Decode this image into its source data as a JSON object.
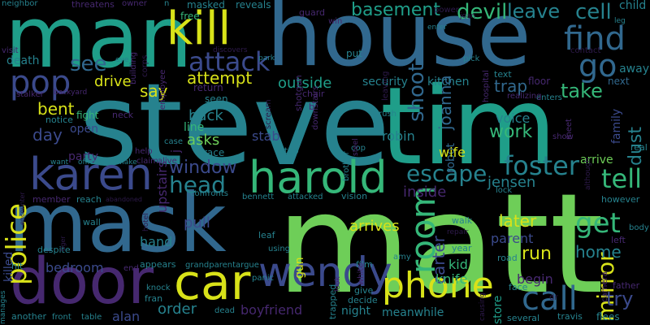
{
  "palette": {
    "purple": "#46286f",
    "indigo": "#3b4a8c",
    "blue": "#31688e",
    "teal": "#26828e",
    "sea": "#1f9e89",
    "green": "#35b779",
    "lime": "#6ece58",
    "yellow": "#d8e219",
    "deep": "#2e1a4b"
  },
  "words": [
    {
      "text": "steve",
      "color": "teal"
    },
    {
      "text": "tim",
      "color": "sea"
    },
    {
      "text": "matt",
      "color": "lime"
    },
    {
      "text": "house",
      "color": "blue"
    },
    {
      "text": "man",
      "color": "sea"
    },
    {
      "text": "mask",
      "color": "blue"
    },
    {
      "text": "door",
      "color": "purple"
    },
    {
      "text": "kill",
      "color": "yellow"
    },
    {
      "text": "harold",
      "color": "green"
    },
    {
      "text": "karen",
      "color": "indigo"
    },
    {
      "text": "car",
      "color": "yellow"
    },
    {
      "text": "wendy",
      "color": "indigo"
    },
    {
      "text": "phone",
      "color": "yellow"
    },
    {
      "text": "pop",
      "color": "indigo"
    },
    {
      "text": "police",
      "color": "yellow"
    },
    {
      "text": "find",
      "color": "blue"
    },
    {
      "text": "go",
      "color": "blue"
    },
    {
      "text": "call",
      "color": "blue"
    },
    {
      "text": "foster",
      "color": "teal"
    },
    {
      "text": "attack",
      "color": "indigo"
    },
    {
      "text": "room",
      "color": "green"
    },
    {
      "text": "escape",
      "color": "teal"
    },
    {
      "text": "head",
      "color": "teal"
    },
    {
      "text": "window",
      "color": "indigo"
    },
    {
      "text": "tell",
      "color": "green"
    },
    {
      "text": "get",
      "color": "green"
    },
    {
      "text": "devil",
      "color": "green"
    },
    {
      "text": "leave",
      "color": "teal"
    },
    {
      "text": "cell",
      "color": "teal"
    },
    {
      "text": "basement",
      "color": "sea"
    },
    {
      "text": "shoot",
      "color": "blue"
    },
    {
      "text": "see",
      "color": "blue"
    },
    {
      "text": "say",
      "color": "yellow"
    },
    {
      "text": "drive",
      "color": "yellow"
    },
    {
      "text": "attempt",
      "color": "yellow"
    },
    {
      "text": "outside",
      "color": "sea"
    },
    {
      "text": "security",
      "color": "teal"
    },
    {
      "text": "kitchen",
      "color": "teal"
    },
    {
      "text": "trap",
      "color": "blue"
    },
    {
      "text": "take",
      "color": "green"
    },
    {
      "text": "work",
      "color": "green"
    },
    {
      "text": "voice",
      "color": "teal"
    },
    {
      "text": "jensen",
      "color": "teal"
    },
    {
      "text": "inside",
      "color": "purple"
    },
    {
      "text": "mirror",
      "color": "yellow"
    },
    {
      "text": "dust",
      "color": "teal"
    },
    {
      "text": "arrive",
      "color": "lime"
    },
    {
      "text": "try",
      "color": "indigo"
    },
    {
      "text": "home",
      "color": "teal"
    },
    {
      "text": "later",
      "color": "yellow"
    },
    {
      "text": "parent",
      "color": "indigo"
    },
    {
      "text": "run",
      "color": "yellow"
    },
    {
      "text": "carter",
      "color": "indigo"
    },
    {
      "text": "joanna",
      "color": "blue"
    },
    {
      "text": "robin",
      "color": "teal"
    },
    {
      "text": "robot",
      "color": "blue"
    },
    {
      "text": "wife",
      "color": "yellow"
    },
    {
      "text": "arrives",
      "color": "yellow"
    },
    {
      "text": "bent",
      "color": "yellow"
    },
    {
      "text": "day",
      "color": "indigo"
    },
    {
      "text": "open",
      "color": "indigo"
    },
    {
      "text": "party",
      "color": "purple"
    },
    {
      "text": "upstairs",
      "color": "purple"
    },
    {
      "text": "back",
      "color": "teal"
    },
    {
      "text": "line",
      "color": "green"
    },
    {
      "text": "asks",
      "color": "lime"
    },
    {
      "text": "stab",
      "color": "indigo"
    },
    {
      "text": "hand",
      "color": "teal"
    },
    {
      "text": "pull",
      "color": "indigo"
    },
    {
      "text": "order",
      "color": "teal"
    },
    {
      "text": "boyfriend",
      "color": "purple"
    },
    {
      "text": "night",
      "color": "teal"
    },
    {
      "text": "meanwhile",
      "color": "teal"
    },
    {
      "text": "knife",
      "color": "green"
    },
    {
      "text": "kid",
      "color": "green"
    },
    {
      "text": "bedroom",
      "color": "indigo"
    },
    {
      "text": "killed",
      "color": "indigo"
    },
    {
      "text": "alan",
      "color": "indigo"
    },
    {
      "text": "begin",
      "color": "purple"
    },
    {
      "text": "store",
      "color": "sea"
    },
    {
      "text": "family",
      "color": "indigo"
    },
    {
      "text": "child",
      "color": "teal"
    },
    {
      "text": "away",
      "color": "teal"
    },
    {
      "text": "next",
      "color": "blue"
    },
    {
      "text": "fight",
      "color": "green"
    },
    {
      "text": "death",
      "color": "teal"
    },
    {
      "text": "see",
      "color": "blue"
    },
    {
      "text": "gun",
      "color": "yellow"
    },
    {
      "text": "return",
      "color": "purple"
    },
    {
      "text": "seen",
      "color": "teal"
    },
    {
      "text": "masked",
      "color": "teal"
    },
    {
      "text": "reveals",
      "color": "teal"
    },
    {
      "text": "free",
      "color": "green"
    },
    {
      "text": "guard",
      "color": "purple"
    },
    {
      "text": "shotgun",
      "color": "purple"
    },
    {
      "text": "downstairs",
      "color": "purple"
    },
    {
      "text": "scream",
      "color": "deep"
    },
    {
      "text": "put",
      "color": "teal"
    },
    {
      "text": "leaving",
      "color": "deep"
    },
    {
      "text": "text",
      "color": "teal"
    },
    {
      "text": "hospital",
      "color": "purple"
    },
    {
      "text": "power",
      "color": "deep"
    },
    {
      "text": "floor",
      "color": "purple"
    },
    {
      "text": "enters",
      "color": "teal"
    },
    {
      "text": "realizing",
      "color": "purple"
    },
    {
      "text": "contact",
      "color": "deep"
    },
    {
      "text": "meet",
      "color": "purple"
    },
    {
      "text": "show",
      "color": "purple"
    },
    {
      "text": "although",
      "color": "deep"
    },
    {
      "text": "real",
      "color": "teal"
    },
    {
      "text": "however",
      "color": "teal"
    },
    {
      "text": "body",
      "color": "teal"
    },
    {
      "text": "left",
      "color": "purple"
    },
    {
      "text": "camera",
      "color": "purple"
    },
    {
      "text": "father",
      "color": "purple"
    },
    {
      "text": "flees",
      "color": "teal"
    },
    {
      "text": "several",
      "color": "teal"
    },
    {
      "text": "travis",
      "color": "teal"
    },
    {
      "text": "face",
      "color": "teal"
    },
    {
      "text": "dr",
      "color": "deep"
    },
    {
      "text": "causing",
      "color": "deep"
    },
    {
      "text": "year",
      "color": "teal"
    },
    {
      "text": "road",
      "color": "teal"
    },
    {
      "text": "walk",
      "color": "teal"
    },
    {
      "text": "repair",
      "color": "deep"
    },
    {
      "text": "lock",
      "color": "teal"
    },
    {
      "text": "film",
      "color": "teal"
    },
    {
      "text": "vision",
      "color": "teal"
    },
    {
      "text": "attacked",
      "color": "teal"
    },
    {
      "text": "bennett",
      "color": "teal"
    },
    {
      "text": "argue",
      "color": "teal"
    },
    {
      "text": "grandparent",
      "color": "teal"
    },
    {
      "text": "confronts",
      "color": "teal"
    },
    {
      "text": "appears",
      "color": "teal"
    },
    {
      "text": "reach",
      "color": "teal"
    },
    {
      "text": "member",
      "color": "purple"
    },
    {
      "text": "wall",
      "color": "teal"
    },
    {
      "text": "hit",
      "color": "teal"
    },
    {
      "text": "manages",
      "color": "teal"
    },
    {
      "text": "another",
      "color": "teal"
    },
    {
      "text": "front",
      "color": "teal"
    },
    {
      "text": "table",
      "color": "teal"
    },
    {
      "text": "dead",
      "color": "teal"
    },
    {
      "text": "fran",
      "color": "teal"
    },
    {
      "text": "knock",
      "color": "teal"
    },
    {
      "text": "end",
      "color": "purple"
    },
    {
      "text": "despite",
      "color": "teal"
    },
    {
      "text": "help",
      "color": "purple"
    },
    {
      "text": "claim",
      "color": "purple"
    },
    {
      "text": "want",
      "color": "teal"
    },
    {
      "text": "officer",
      "color": "teal"
    },
    {
      "text": "make",
      "color": "teal"
    },
    {
      "text": "notice",
      "color": "teal"
    },
    {
      "text": "neck",
      "color": "purple"
    },
    {
      "text": "case",
      "color": "teal"
    },
    {
      "text": "race",
      "color": "teal"
    },
    {
      "text": "alive",
      "color": "purple"
    },
    {
      "text": "stop",
      "color": "teal"
    },
    {
      "text": "cop",
      "color": "teal"
    },
    {
      "text": "brother",
      "color": "teal"
    },
    {
      "text": "steel",
      "color": "purple"
    },
    {
      "text": "chair",
      "color": "purple"
    },
    {
      "text": "rush",
      "color": "teal"
    },
    {
      "text": "give",
      "color": "teal"
    },
    {
      "text": "decide",
      "color": "teal"
    },
    {
      "text": "trapped",
      "color": "teal"
    },
    {
      "text": "white",
      "color": "purple"
    },
    {
      "text": "panic",
      "color": "teal"
    },
    {
      "text": "leaf",
      "color": "teal"
    },
    {
      "text": "amy",
      "color": "teal"
    },
    {
      "text": "using",
      "color": "teal"
    },
    {
      "text": "look",
      "color": "purple"
    },
    {
      "text": "neighbor",
      "color": "teal"
    },
    {
      "text": "threatens",
      "color": "purple"
    },
    {
      "text": "visit",
      "color": "purple"
    },
    {
      "text": "building",
      "color": "purple"
    },
    {
      "text": "corps",
      "color": "deep"
    },
    {
      "text": "employee",
      "color": "purple"
    },
    {
      "text": "eye",
      "color": "teal"
    },
    {
      "text": "stalker",
      "color": "purple"
    },
    {
      "text": "backyard",
      "color": "purple"
    },
    {
      "text": "owner",
      "color": "purple"
    },
    {
      "text": "n",
      "color": "teal"
    },
    {
      "text": "win",
      "color": "purple"
    },
    {
      "text": "discovers",
      "color": "deep"
    },
    {
      "text": "park",
      "color": "teal"
    },
    {
      "text": "enter",
      "color": "teal"
    },
    {
      "text": "pick",
      "color": "teal"
    },
    {
      "text": "leg",
      "color": "teal"
    },
    {
      "text": "joan",
      "color": "deep"
    },
    {
      "text": "abandoned",
      "color": "deep"
    },
    {
      "text": "encounter",
      "color": "deep"
    },
    {
      "text": "tiger",
      "color": "deep"
    },
    {
      "text": "hotel",
      "color": "deep"
    },
    {
      "text": "j",
      "color": "purple"
    },
    {
      "text": "b",
      "color": "purple"
    }
  ]
}
